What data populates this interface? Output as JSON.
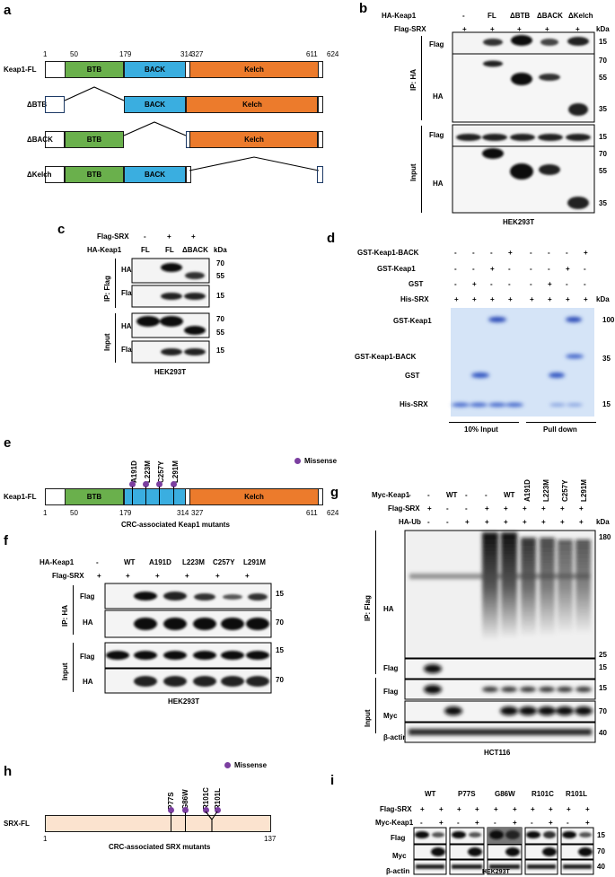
{
  "panels": {
    "a": {
      "label": "a",
      "positions": [
        "1",
        "50",
        "179",
        "314",
        "327",
        "611",
        "624"
      ],
      "constructs": [
        "Keap1-FL",
        "ΔBTB",
        "ΔBACK",
        "ΔKelch"
      ],
      "domains": {
        "btb": "BTB",
        "back": "BACK",
        "kelch": "Kelch"
      }
    },
    "b": {
      "label": "b",
      "row1_label": "HA-Keap1",
      "row1_values": [
        "-",
        "FL",
        "ΔBTB",
        "ΔBACK",
        "ΔKelch"
      ],
      "row2_label": "Flag-SRX",
      "row2_values": [
        "+",
        "+",
        "+",
        "+",
        "+"
      ],
      "kda": "kDa",
      "group_ip": "IP: HA",
      "group_input": "Input",
      "blot_labels": [
        "Flag",
        "HA",
        "Flag",
        "HA"
      ],
      "markers_ip_flag": [
        "15"
      ],
      "markers_ip_ha": [
        "70",
        "55",
        "35"
      ],
      "markers_in_flag": [
        "15"
      ],
      "markers_in_ha": [
        "70",
        "55",
        "35"
      ],
      "cell_line": "HEK293T"
    },
    "c": {
      "label": "c",
      "row1_label": "Flag-SRX",
      "row1_values": [
        "-",
        "+",
        "+"
      ],
      "row2_label": "HA-Keap1",
      "row2_values": [
        "FL",
        "FL",
        "ΔBACK"
      ],
      "kda": "kDa",
      "group_ip": "IP: Flag",
      "group_input": "Input",
      "blot_labels": [
        "HA",
        "Flag",
        "HA",
        "Flag"
      ],
      "markers": [
        "70",
        "55",
        "15",
        "70",
        "55",
        "15"
      ],
      "cell_line": "HEK293T"
    },
    "d": {
      "label": "d",
      "row_labels": [
        "GST-Keap1-BACK",
        "GST-Keap1",
        "GST",
        "His-SRX"
      ],
      "rows": [
        [
          "-",
          "-",
          "-",
          "+",
          "-",
          "-",
          "-",
          "+"
        ],
        [
          "-",
          "-",
          "+",
          "-",
          "-",
          "-",
          "+",
          "-"
        ],
        [
          "-",
          "+",
          "-",
          "-",
          "-",
          "+",
          "-",
          "-"
        ],
        [
          "+",
          "+",
          "+",
          "+",
          "+",
          "+",
          "+",
          "+"
        ]
      ],
      "kda": "kDa",
      "band_labels": [
        "GST-Keap1",
        "GST-Keap1-BACK",
        "GST",
        "His-SRX"
      ],
      "markers": [
        "100",
        "35",
        "15"
      ],
      "group_labels": [
        "10% Input",
        "Pull down"
      ]
    },
    "e": {
      "label": "e",
      "construct": "Keap1-FL",
      "mutations": [
        "A191D",
        "L223M",
        "C257Y",
        "L291M"
      ],
      "legend": "Missense",
      "positions": [
        "1",
        "50",
        "179",
        "314",
        "327",
        "611",
        "624"
      ],
      "caption": "CRC-associated Keap1 mutants"
    },
    "f": {
      "label": "f",
      "row1_label": "HA-Keap1",
      "row1_values": [
        "-",
        "WT",
        "A191D",
        "L223M",
        "C257Y",
        "L291M"
      ],
      "row2_label": "Flag-SRX",
      "row2_values": [
        "+",
        "+",
        "+",
        "+",
        "+",
        "+"
      ],
      "group_ip": "IP: HA",
      "group_input": "Input",
      "blot_labels": [
        "Flag",
        "HA",
        "Flag",
        "HA"
      ],
      "markers": [
        "15",
        "70",
        "15",
        "70"
      ],
      "cell_line": "HEK293T"
    },
    "g": {
      "label": "g",
      "row_labels": [
        "Myc-Keap1",
        "Flag-SRX",
        "HA-Ub"
      ],
      "myc_values": [
        "-",
        "-",
        "WT",
        "-",
        "-",
        "WT",
        "A191D",
        "L223M",
        "C257Y",
        "L291M"
      ],
      "flag_values": [
        "-",
        "+",
        "-",
        "-",
        "+",
        "+",
        "+",
        "+",
        "+",
        "+"
      ],
      "ub_values": [
        "-",
        "-",
        "-",
        "+",
        "+",
        "+",
        "+",
        "+",
        "+",
        "+"
      ],
      "kda": "kDa",
      "group_ip": "IP: Flag",
      "group_input": "Input",
      "blot_labels": [
        "HA",
        "Flag",
        "Flag",
        "Myc",
        "β-actin"
      ],
      "markers": [
        "180",
        "25",
        "15",
        "15",
        "70",
        "40"
      ],
      "cell_line": "HCT116"
    },
    "h": {
      "label": "h",
      "construct": "SRX-FL",
      "legend": "Missense",
      "mutations": [
        "P77S",
        "G86W",
        "R101C",
        "R101L"
      ],
      "positions": [
        "1",
        "137"
      ],
      "caption": "CRC-associated SRX mutants"
    },
    "i": {
      "label": "i",
      "groups": [
        "WT",
        "P77S",
        "G86W",
        "R101C",
        "R101L"
      ],
      "row1_label": "Flag-SRX",
      "row1_values": [
        "+",
        "+",
        "+",
        "+",
        "+",
        "+",
        "+",
        "+",
        "+",
        "+"
      ],
      "row2_label": "Myc-Keap1",
      "row2_values": [
        "-",
        "+",
        "-",
        "+",
        "-",
        "+",
        "-",
        "+",
        "-",
        "+"
      ],
      "blot_labels": [
        "Flag",
        "Myc",
        "β-actin"
      ],
      "markers": [
        "15",
        "70",
        "40"
      ],
      "cell_line": "HEK293T"
    }
  },
  "colors": {
    "btb": "#6ab04c",
    "back": "#3aaee0",
    "kelch": "#ec7b2c",
    "srx": "#fbe3cf",
    "missense": "#7b3fa0",
    "gel": "#cfe0f5"
  }
}
